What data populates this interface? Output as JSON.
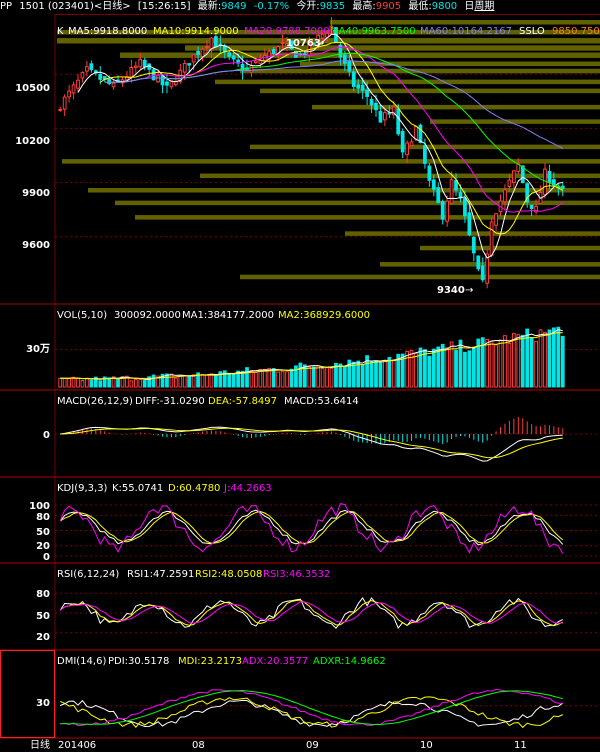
{
  "header": {
    "product": "PP",
    "contract": "1501 (023401)<日线>",
    "time": "[15:26:15]",
    "latest_label": "最新:",
    "latest": "9849",
    "change": "-0.17%",
    "open_label": "今开:",
    "open": "9835",
    "high_label": "最高:",
    "high": "9905",
    "low_label": "最低:",
    "low": "9800",
    "period_day": "日",
    "period_week": "周期"
  },
  "colors": {
    "up": "#ff3b3b",
    "down": "#00e5e5",
    "ma5": "#ffffff",
    "ma10": "#ffff00",
    "ma20": "#ff00ff",
    "ma40": "#00ff00",
    "ma60": "#8080ff",
    "sslo": "#ff8000",
    "band": "#6b6b00",
    "grid": "#7a0000"
  },
  "panels": {
    "price": {
      "label": "K",
      "ma5": "MA5:9918.8000",
      "ma10": "MA10:9914.9000",
      "ma20": "MA20:9788.7000",
      "ma40": "MA40:9963.7500",
      "ma60": "MA60:10164.2167",
      "sslo_label": "SSLO",
      "sslo_value": "9850.7500",
      "ticks": [
        "10500",
        "10200",
        "9900",
        "9600"
      ],
      "high_mark": "10763",
      "low_mark": "9340"
    },
    "vol": {
      "title": "VOL(5,10)",
      "value": "300092.0000",
      "ma1": "MA1:384177.2000",
      "ma2": "MA2:368929.6000",
      "tick": "30万"
    },
    "macd": {
      "title": "MACD(26,12,9)",
      "diff": "DIFF:-31.0290",
      "dea": "DEA:-57.8497",
      "macd": "MACD:53.6414",
      "tick": "0"
    },
    "kdj": {
      "title": "KDJ(9,3,3)",
      "k": "K:55.0741",
      "d": "D:60.4780",
      "j": "J:44.2663",
      "ticks": [
        "100",
        "80",
        "50",
        "20",
        "0"
      ]
    },
    "rsi": {
      "title": "RSI(6,12,24)",
      "rsi1": "RSI1:47.2591",
      "rsi2": "RSI2:48.0508",
      "rsi3": "RSI3:46.3532",
      "ticks": [
        "80",
        "50",
        "20"
      ]
    },
    "dmi": {
      "title": "DMI(14,6)",
      "pdi": "PDI:30.5178",
      "mdi": "MDI:23.2173",
      "adx": "ADX:20.3577",
      "adxr": "ADXR:14.9662",
      "tick": "30"
    }
  },
  "xaxis": {
    "period_label": "日线",
    "labels": [
      "201406",
      "08",
      "09",
      "10",
      "11"
    ]
  },
  "chart_data": {
    "type": "candlestick",
    "ylim": [
      9250,
      10800
    ],
    "yticks": [
      10500,
      10200,
      9900,
      9600
    ],
    "price_path": [
      [
        0,
        10330
      ],
      [
        6,
        10520
      ],
      [
        12,
        10430
      ],
      [
        18,
        10560
      ],
      [
        24,
        10420
      ],
      [
        30,
        10600
      ],
      [
        34,
        10700
      ],
      [
        38,
        10580
      ],
      [
        42,
        10520
      ],
      [
        46,
        10600
      ],
      [
        50,
        10660
      ],
      [
        54,
        10600
      ],
      [
        58,
        10700
      ],
      [
        61,
        10763
      ],
      [
        63,
        10600
      ],
      [
        66,
        10440
      ],
      [
        69,
        10380
      ],
      [
        72,
        10250
      ],
      [
        75,
        10300
      ],
      [
        77,
        10050
      ],
      [
        80,
        10200
      ],
      [
        83,
        9900
      ],
      [
        86,
        9720
      ],
      [
        88,
        9900
      ],
      [
        90,
        9800
      ],
      [
        92,
        9600
      ],
      [
        94,
        9400
      ],
      [
        95,
        9340
      ],
      [
        97,
        9700
      ],
      [
        100,
        9850
      ],
      [
        103,
        10000
      ],
      [
        105,
        9800
      ],
      [
        107,
        9750
      ],
      [
        109,
        9950
      ],
      [
        111,
        9900
      ],
      [
        113,
        9849
      ]
    ],
    "volume_range": [
      0,
      550000
    ],
    "volume_tick": 300000,
    "date_labels": [
      "201406",
      "08",
      "09",
      "10",
      "11"
    ]
  }
}
